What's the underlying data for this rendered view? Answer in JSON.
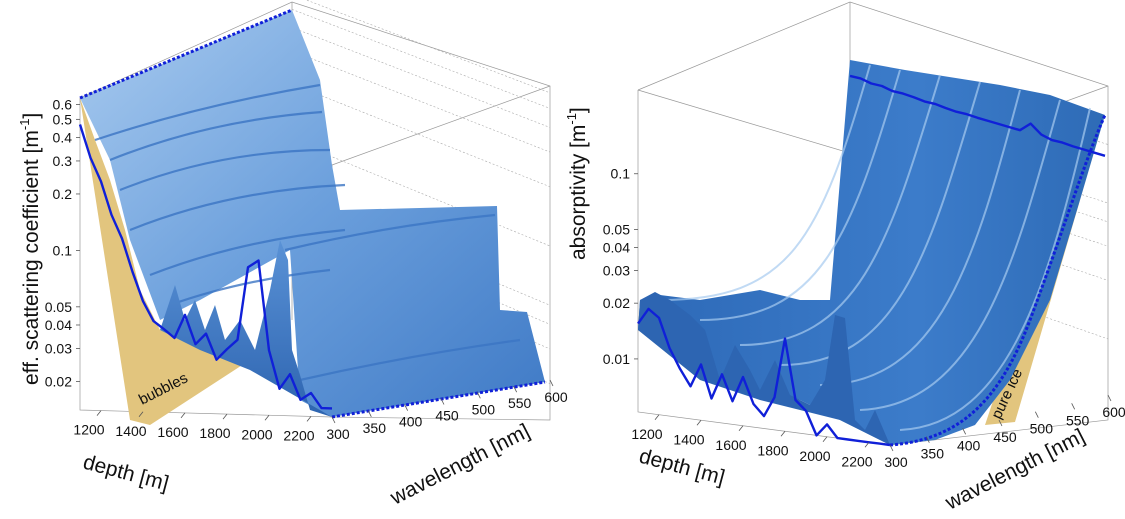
{
  "colors": {
    "surface_light": "#9cc3ea",
    "surface_mid": "#5d93d6",
    "surface_dark": "#2f6bb8",
    "edge_line": "#1020d8",
    "bubbles_fill": "#e2c57e",
    "pure_ice_fill": "#e2c57e",
    "frame": "#999999"
  },
  "chart_data": [
    {
      "type": "area",
      "render": "3d-surface",
      "title": "",
      "zlabel": "eff. scattering coefficient [m⁻¹]",
      "zlabel_main": "eff. scattering coefficient [m",
      "zlabel_exp": "-1",
      "zlabel_close": "]",
      "xlabel": "depth [m]",
      "ylabel": "wavelength [nm]",
      "zscale": "log",
      "zlim": [
        0.018,
        0.65
      ],
      "xlim": [
        1100,
        2300
      ],
      "ylim": [
        300,
        600
      ],
      "z_ticks": [
        0.6,
        0.5,
        0.4,
        0.3,
        0.2,
        0.1,
        0.05,
        0.04,
        0.03,
        0.02
      ],
      "z_tick_labels": [
        "0.6",
        "0.5",
        "0.4",
        "0.3",
        "0.2",
        "0.1",
        "0.05",
        "0.04",
        "0.03",
        "0.02"
      ],
      "x_ticks": [
        1200,
        1400,
        1600,
        1800,
        2000,
        2200
      ],
      "x_tick_labels": [
        "1200",
        "1400",
        "1600",
        "1800",
        "2000",
        "2200"
      ],
      "y_ticks": [
        300,
        350,
        400,
        450,
        500,
        550,
        600
      ],
      "y_tick_labels": [
        "300",
        "350",
        "400",
        "450",
        "500",
        "550",
        "600"
      ],
      "annotation": "bubbles",
      "depth_profile_at_300nm": {
        "depth": [
          1100,
          1150,
          1200,
          1250,
          1300,
          1350,
          1400,
          1450,
          1500,
          1550,
          1600,
          1650,
          1700,
          1750,
          1800,
          1850,
          1900,
          1950,
          2000,
          2050,
          2100,
          2150,
          2200,
          2250,
          2300
        ],
        "value": [
          0.6,
          0.4,
          0.3,
          0.2,
          0.15,
          0.1,
          0.07,
          0.055,
          0.05,
          0.045,
          0.06,
          0.042,
          0.048,
          0.035,
          0.04,
          0.045,
          0.11,
          0.12,
          0.04,
          0.025,
          0.03,
          0.022,
          0.024,
          0.02,
          0.02
        ]
      },
      "wavelength_trend": "nearly flat, slight decrease with wavelength"
    },
    {
      "type": "area",
      "render": "3d-surface",
      "title": "",
      "zlabel": "absorptivity [m⁻¹]",
      "zlabel_main": "absorptivity [m",
      "zlabel_exp": "-1",
      "zlabel_close": "]",
      "xlabel": "depth [m]",
      "ylabel": "wavelength [nm]",
      "zscale": "log",
      "zlim": [
        0.006,
        0.2
      ],
      "xlim": [
        1100,
        2300
      ],
      "ylim": [
        300,
        600
      ],
      "z_ticks": [
        0.1,
        0.05,
        0.04,
        0.03,
        0.02,
        0.01
      ],
      "z_tick_labels": [
        "0.1",
        "0.05",
        "0.04",
        "0.03",
        "0.02",
        "0.01"
      ],
      "x_ticks": [
        1200,
        1400,
        1600,
        1800,
        2000,
        2200
      ],
      "x_tick_labels": [
        "1200",
        "1400",
        "1600",
        "1800",
        "2000",
        "2200"
      ],
      "y_ticks": [
        300,
        350,
        400,
        450,
        500,
        550,
        600
      ],
      "y_tick_labels": [
        "300",
        "350",
        "400",
        "450",
        "500",
        "550",
        "600"
      ],
      "annotation": "pure ice",
      "depth_profile_at_600nm": {
        "depth": [
          1100,
          1150,
          1200,
          1250,
          1300,
          1350,
          1400,
          1450,
          1500,
          1550,
          1600,
          1650,
          1700,
          1750,
          1800,
          1850,
          1900,
          1950,
          2000,
          2050,
          2100,
          2150,
          2200,
          2250,
          2300
        ],
        "value": [
          0.16,
          0.16,
          0.155,
          0.155,
          0.15,
          0.15,
          0.148,
          0.145,
          0.145,
          0.142,
          0.14,
          0.14,
          0.138,
          0.137,
          0.136,
          0.135,
          0.134,
          0.15,
          0.135,
          0.13,
          0.13,
          0.128,
          0.127,
          0.126,
          0.125
        ]
      },
      "depth_profile_at_300nm": {
        "depth": [
          1100,
          1150,
          1200,
          1250,
          1300,
          1350,
          1400,
          1450,
          1500,
          1550,
          1600,
          1650,
          1700,
          1750,
          1800,
          1850,
          1900,
          1950,
          2000,
          2050,
          2100,
          2150,
          2200,
          2250,
          2300
        ],
        "value": [
          0.018,
          0.022,
          0.02,
          0.014,
          0.011,
          0.009,
          0.012,
          0.008,
          0.011,
          0.008,
          0.011,
          0.008,
          0.007,
          0.009,
          0.019,
          0.009,
          0.008,
          0.006,
          0.007,
          0.006,
          0.006,
          0.006,
          0.006,
          0.006,
          0.006
        ]
      },
      "wavelength_trend": "strongly increasing toward 600 nm"
    }
  ]
}
